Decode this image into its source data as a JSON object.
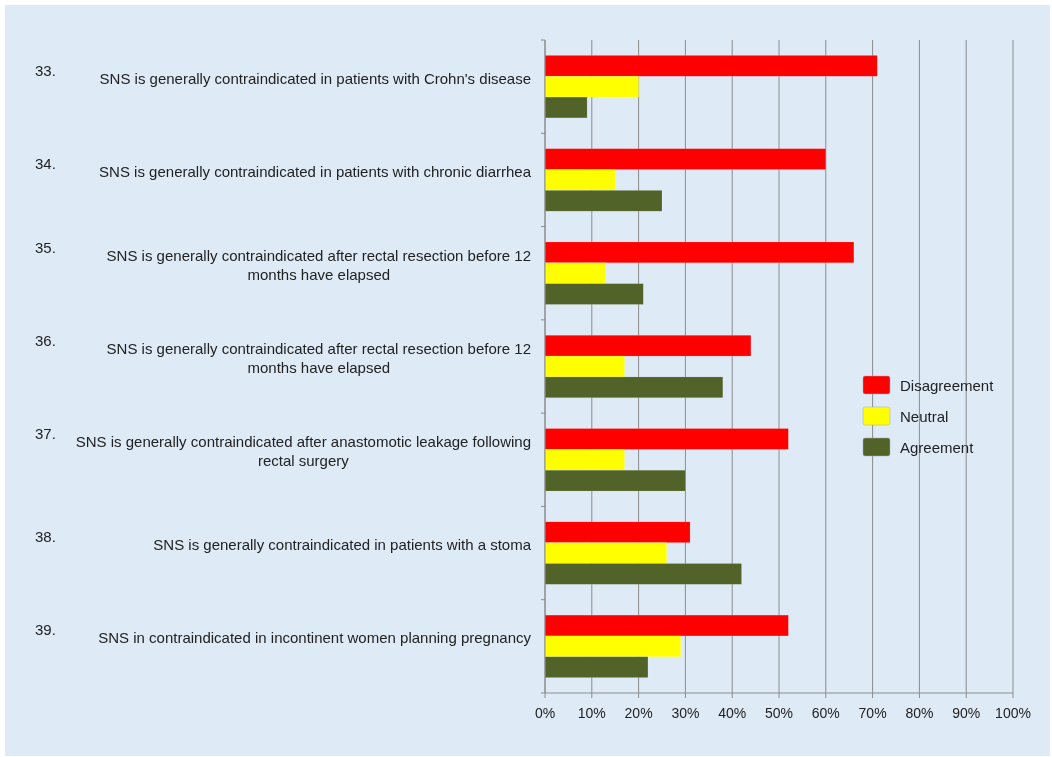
{
  "chart_data": {
    "type": "bar",
    "orientation": "horizontal",
    "categories": [
      "33. SNS is generally contraindicated in patients with Crohn's disease",
      "34. SNS is generally contraindicated in patients with chronic diarrhea",
      "35. SNS is generally contraindicated after rectal resection before 12 months have elapsed",
      "36. SNS is generally contraindicated after rectal resection before 12 months have elapsed",
      "37. SNS is generally contraindicated after anastomotic leakage following rectal surgery",
      "38. SNS is generally contraindicated in patients with a stoma",
      "39. SNS in contraindicated in incontinent women planning pregnancy"
    ],
    "series": [
      {
        "name": "Disagreement",
        "color": "#ff0000",
        "values": [
          71,
          60,
          66,
          44,
          52,
          31,
          52
        ]
      },
      {
        "name": "Neutral",
        "color": "#ffff00",
        "values": [
          20,
          15,
          13,
          17,
          17,
          26,
          29
        ]
      },
      {
        "name": "Agreement",
        "color": "#52632a",
        "values": [
          9,
          25,
          21,
          38,
          30,
          42,
          22
        ]
      }
    ],
    "xlim": [
      0,
      100
    ],
    "xticks": [
      {
        "value": 0,
        "label": "0%"
      },
      {
        "value": 10,
        "label": "10%"
      },
      {
        "value": 20,
        "label": "20%"
      },
      {
        "value": 30,
        "label": "30%"
      },
      {
        "value": 40,
        "label": "40%"
      },
      {
        "value": 50,
        "label": "50%"
      },
      {
        "value": 60,
        "label": "60%"
      },
      {
        "value": 70,
        "label": "70%"
      },
      {
        "value": 80,
        "label": "80%"
      },
      {
        "value": 90,
        "label": "90%"
      },
      {
        "value": 100,
        "label": "100%"
      }
    ],
    "grid": "x",
    "legend": "right"
  }
}
